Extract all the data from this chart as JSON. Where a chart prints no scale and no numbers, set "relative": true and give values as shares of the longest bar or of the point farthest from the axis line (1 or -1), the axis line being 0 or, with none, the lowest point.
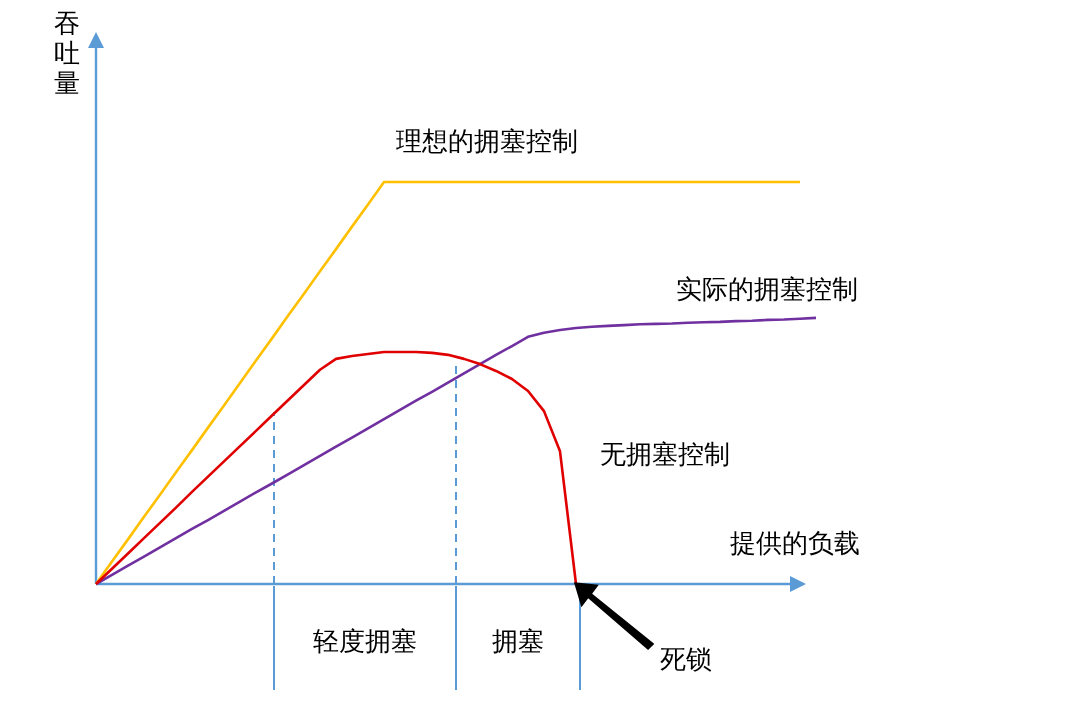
{
  "chart_data": {
    "type": "line",
    "relative": true,
    "xlabel": "提供的负载",
    "ylabel": "吞吐量",
    "categories": [
      null,
      null,
      null,
      null,
      null,
      null,
      null,
      null,
      null,
      null,
      null,
      null,
      null,
      null,
      null,
      null,
      null,
      null,
      null,
      null,
      null,
      null,
      null,
      null,
      null,
      null,
      null,
      null,
      null,
      null,
      null,
      null,
      null,
      null,
      null,
      null,
      null,
      null,
      null,
      null,
      null,
      null,
      null,
      null,
      null,
      null
    ],
    "series": [
      {
        "name": "理想的拥塞控制",
        "color": "#ffc000",
        "values": [
          0,
          0.056,
          0.111,
          0.167,
          0.222,
          0.278,
          0.333,
          0.389,
          0.444,
          0.5,
          0.556,
          0.611,
          0.667,
          0.722,
          0.778,
          0.833,
          0.889,
          0.944,
          1,
          1,
          1,
          1,
          1,
          1,
          1,
          1,
          1,
          1,
          1,
          1,
          1,
          1,
          1,
          1,
          1,
          1,
          1,
          1,
          1,
          1,
          1,
          1,
          1,
          1,
          1,
          null
        ]
      },
      {
        "name": "实际的拥塞控制",
        "color": "#7030a0",
        "values": [
          0,
          0.023,
          0.046,
          0.068,
          0.091,
          0.114,
          0.137,
          0.159,
          0.182,
          0.205,
          0.228,
          0.25,
          0.273,
          0.296,
          0.319,
          0.342,
          0.364,
          0.387,
          0.41,
          0.433,
          0.456,
          0.478,
          0.501,
          0.524,
          0.547,
          0.57,
          0.592,
          0.615,
          0.625,
          0.632,
          0.637,
          0.64,
          0.642,
          0.644,
          0.646,
          0.647,
          0.648,
          0.65,
          0.651,
          0.652,
          0.654,
          0.655,
          0.657,
          0.658,
          0.66,
          0.662
        ]
      },
      {
        "name": "无拥塞控制",
        "color": "#e00000",
        "values": [
          0,
          0.038,
          0.076,
          0.114,
          0.152,
          0.19,
          0.229,
          0.267,
          0.305,
          0.343,
          0.381,
          0.419,
          0.457,
          0.495,
          0.533,
          0.56,
          0.567,
          0.572,
          0.577,
          0.577,
          0.577,
          0.575,
          0.57,
          0.56,
          0.547,
          0.53,
          0.51,
          0.48,
          0.43,
          0.33,
          0,
          null,
          null,
          null,
          null,
          null,
          null,
          null,
          null,
          null,
          null,
          null,
          null,
          null,
          null,
          null
        ]
      }
    ],
    "annotations": [
      "轻度拥塞",
      "拥塞",
      "死锁"
    ]
  }
}
